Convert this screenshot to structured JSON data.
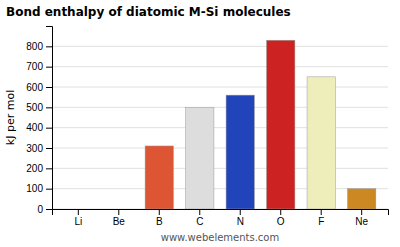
{
  "chart_data": {
    "type": "bar",
    "title": "Bond enthalpy of diatomic M-Si molecules",
    "ylabel": "kJ per mol",
    "annotations": [
      "www.webelements.com"
    ],
    "categories": [
      "Li",
      "Be",
      "B",
      "C",
      "N",
      "O",
      "F",
      "Ne"
    ],
    "values": [
      0,
      0,
      310,
      500,
      560,
      830,
      650,
      100
    ],
    "colors": [
      "#cc6633",
      "#cc6633",
      "#dd5533",
      "#dddddd",
      "#2244bb",
      "#cc2222",
      "#eeeebb",
      "#cc8822"
    ],
    "ylim": [
      0,
      900
    ],
    "yticks": [
      0,
      100,
      200,
      300,
      400,
      500,
      600,
      700,
      800
    ],
    "grid": true
  }
}
